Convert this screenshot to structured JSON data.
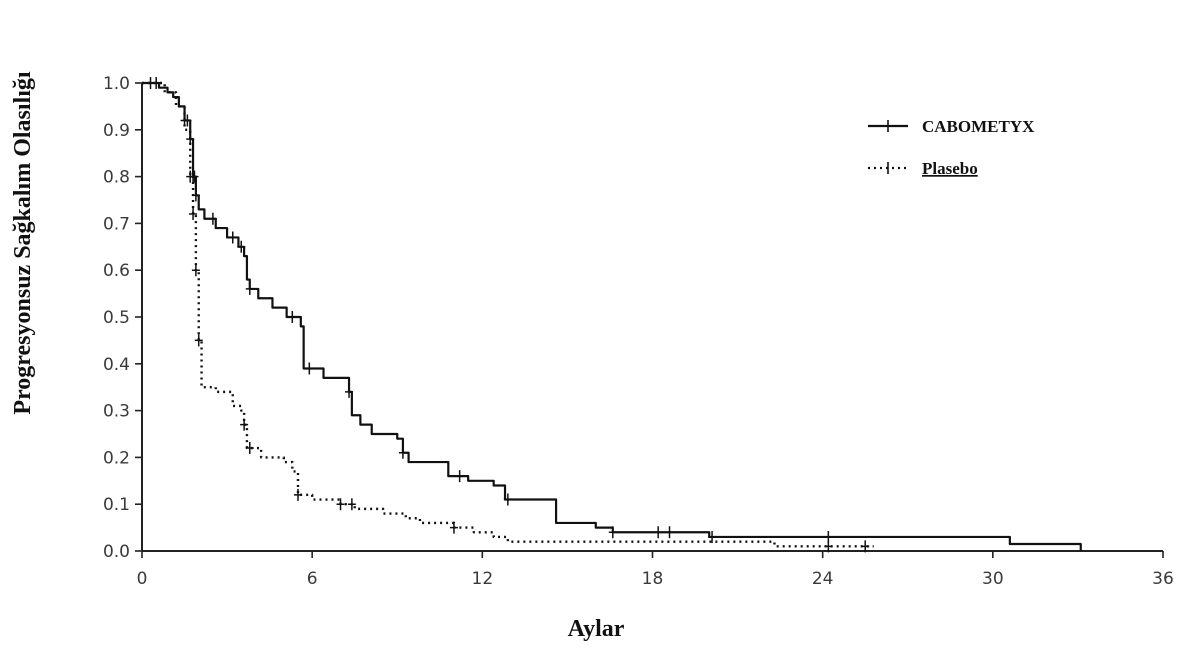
{
  "chart_data": {
    "type": "line",
    "title": "",
    "xlabel": "Aylar",
    "ylabel": "Progresyonsuz Sağkalım Olasılığı",
    "xlim": [
      0,
      36
    ],
    "ylim": [
      0,
      1.0
    ],
    "xticks": [
      0,
      6,
      12,
      18,
      24,
      30,
      36
    ],
    "xtick_labels": [
      "0",
      "6",
      "12",
      "18",
      "24",
      "30",
      "36"
    ],
    "yticks": [
      0.0,
      0.1,
      0.2,
      0.3,
      0.4,
      0.5,
      0.6,
      0.7,
      0.8,
      0.9,
      1.0
    ],
    "ytick_labels": [
      "0.0",
      "0.1",
      "0.2",
      "0.3",
      "0.4",
      "0.5",
      "0.6",
      "0.7",
      "0.8",
      "0.9",
      "1.0"
    ],
    "grid": false,
    "legend_position": "top-right",
    "series": [
      {
        "name": "CABOMETYX",
        "style": "solid",
        "marker": "+",
        "color": "#111111",
        "points": [
          [
            0,
            1.0
          ],
          [
            0.6,
            0.99
          ],
          [
            0.9,
            0.98
          ],
          [
            1.1,
            0.97
          ],
          [
            1.3,
            0.95
          ],
          [
            1.5,
            0.92
          ],
          [
            1.7,
            0.88
          ],
          [
            1.8,
            0.8
          ],
          [
            1.9,
            0.76
          ],
          [
            2.0,
            0.73
          ],
          [
            2.2,
            0.71
          ],
          [
            2.6,
            0.69
          ],
          [
            3.0,
            0.67
          ],
          [
            3.4,
            0.65
          ],
          [
            3.6,
            0.63
          ],
          [
            3.7,
            0.58
          ],
          [
            3.8,
            0.56
          ],
          [
            4.1,
            0.54
          ],
          [
            4.6,
            0.52
          ],
          [
            5.1,
            0.5
          ],
          [
            5.6,
            0.48
          ],
          [
            5.7,
            0.39
          ],
          [
            6.4,
            0.37
          ],
          [
            7.3,
            0.34
          ],
          [
            7.4,
            0.29
          ],
          [
            7.7,
            0.27
          ],
          [
            8.1,
            0.25
          ],
          [
            9.0,
            0.24
          ],
          [
            9.2,
            0.21
          ],
          [
            9.4,
            0.19
          ],
          [
            10.6,
            0.19
          ],
          [
            10.8,
            0.16
          ],
          [
            11.5,
            0.15
          ],
          [
            12.4,
            0.14
          ],
          [
            12.8,
            0.11
          ],
          [
            14.2,
            0.11
          ],
          [
            14.6,
            0.06
          ],
          [
            16.0,
            0.05
          ],
          [
            16.6,
            0.04
          ],
          [
            18.5,
            0.04
          ],
          [
            20.0,
            0.03
          ],
          [
            30.5,
            0.03
          ],
          [
            30.6,
            0.015
          ],
          [
            33.1,
            0.015
          ],
          [
            33.1,
            0.0
          ]
        ],
        "censor_x": [
          0.3,
          0.5,
          1.5,
          1.6,
          1.7,
          1.8,
          1.85,
          1.9,
          2.5,
          3.2,
          3.5,
          3.8,
          5.3,
          5.9,
          7.3,
          9.2,
          11.2,
          12.9,
          16.6,
          18.2,
          18.6,
          20.1,
          24.2
        ]
      },
      {
        "name": "Plasebo",
        "style": "dotted",
        "marker": "+",
        "color": "#111111",
        "points": [
          [
            0,
            1.0
          ],
          [
            0.8,
            0.98
          ],
          [
            1.2,
            0.95
          ],
          [
            1.5,
            0.9
          ],
          [
            1.7,
            0.8
          ],
          [
            1.8,
            0.72
          ],
          [
            1.9,
            0.6
          ],
          [
            2.0,
            0.45
          ],
          [
            2.1,
            0.35
          ],
          [
            2.6,
            0.34
          ],
          [
            3.2,
            0.31
          ],
          [
            3.5,
            0.3
          ],
          [
            3.6,
            0.27
          ],
          [
            3.7,
            0.22
          ],
          [
            4.2,
            0.2
          ],
          [
            5.0,
            0.19
          ],
          [
            5.3,
            0.17
          ],
          [
            5.5,
            0.12
          ],
          [
            6.0,
            0.11
          ],
          [
            7.0,
            0.1
          ],
          [
            7.5,
            0.09
          ],
          [
            8.5,
            0.08
          ],
          [
            9.3,
            0.07
          ],
          [
            9.8,
            0.06
          ],
          [
            11.0,
            0.05
          ],
          [
            11.7,
            0.04
          ],
          [
            12.4,
            0.03
          ],
          [
            12.9,
            0.02
          ],
          [
            22.0,
            0.02
          ],
          [
            22.3,
            0.01
          ],
          [
            25.8,
            0.01
          ]
        ],
        "censor_x": [
          1.7,
          1.8,
          1.9,
          2.0,
          3.6,
          3.8,
          5.5,
          7.0,
          7.4,
          11.0,
          24.2,
          25.5
        ]
      }
    ]
  },
  "legend": {
    "items": [
      {
        "label": "CABOMETYX"
      },
      {
        "label": "Plasebo"
      }
    ]
  }
}
